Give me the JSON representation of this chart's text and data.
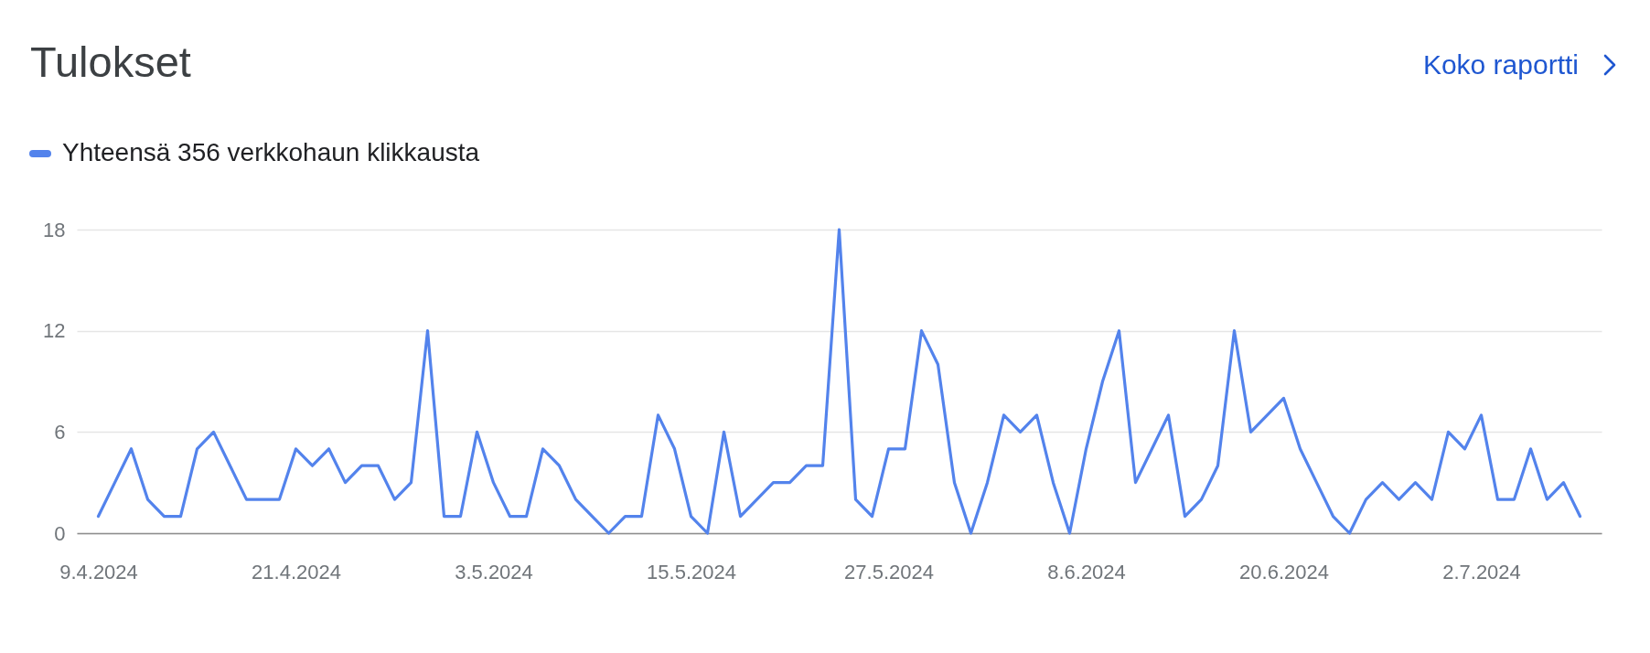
{
  "chart_data": {
    "type": "line",
    "title": "Tulokset",
    "annotations": [
      "Koko raportti"
    ],
    "x": [
      "2024-04-09",
      "2024-04-10",
      "2024-04-11",
      "2024-04-12",
      "2024-04-13",
      "2024-04-14",
      "2024-04-15",
      "2024-04-16",
      "2024-04-17",
      "2024-04-18",
      "2024-04-19",
      "2024-04-20",
      "2024-04-21",
      "2024-04-22",
      "2024-04-23",
      "2024-04-24",
      "2024-04-25",
      "2024-04-26",
      "2024-04-27",
      "2024-04-28",
      "2024-04-29",
      "2024-04-30",
      "2024-05-01",
      "2024-05-02",
      "2024-05-03",
      "2024-05-04",
      "2024-05-05",
      "2024-05-06",
      "2024-05-07",
      "2024-05-08",
      "2024-05-09",
      "2024-05-10",
      "2024-05-11",
      "2024-05-12",
      "2024-05-13",
      "2024-05-14",
      "2024-05-15",
      "2024-05-16",
      "2024-05-17",
      "2024-05-18",
      "2024-05-19",
      "2024-05-20",
      "2024-05-21",
      "2024-05-22",
      "2024-05-23",
      "2024-05-24",
      "2024-05-25",
      "2024-05-26",
      "2024-05-27",
      "2024-05-28",
      "2024-05-29",
      "2024-05-30",
      "2024-05-31",
      "2024-06-01",
      "2024-06-02",
      "2024-06-03",
      "2024-06-04",
      "2024-06-05",
      "2024-06-06",
      "2024-06-07",
      "2024-06-08",
      "2024-06-09",
      "2024-06-10",
      "2024-06-11",
      "2024-06-12",
      "2024-06-13",
      "2024-06-14",
      "2024-06-15",
      "2024-06-16",
      "2024-06-17",
      "2024-06-18",
      "2024-06-19",
      "2024-06-20",
      "2024-06-21",
      "2024-06-22",
      "2024-06-23",
      "2024-06-24",
      "2024-06-25",
      "2024-06-26",
      "2024-06-27",
      "2024-06-28",
      "2024-06-29",
      "2024-06-30",
      "2024-07-01",
      "2024-07-02",
      "2024-07-03",
      "2024-07-04",
      "2024-07-05",
      "2024-07-06",
      "2024-07-07",
      "2024-07-08"
    ],
    "series": [
      {
        "name": "Yhteensä 356 verkkohaun klikkausta",
        "color": "#5383ec",
        "values": [
          1,
          3,
          5,
          2,
          1,
          1,
          5,
          6,
          4,
          2,
          2,
          2,
          5,
          4,
          5,
          3,
          4,
          4,
          2,
          3,
          12,
          1,
          1,
          6,
          3,
          1,
          1,
          5,
          4,
          2,
          1,
          0,
          1,
          1,
          7,
          5,
          1,
          0,
          6,
          1,
          2,
          3,
          3,
          4,
          4,
          18,
          2,
          1,
          5,
          5,
          12,
          10,
          3,
          0,
          3,
          7,
          6,
          7,
          3,
          0,
          5,
          9,
          12,
          3,
          5,
          7,
          1,
          2,
          4,
          12,
          6,
          7,
          8,
          5,
          3,
          1,
          0,
          2,
          3,
          2,
          3,
          2,
          6,
          5,
          7,
          2,
          2,
          5,
          2,
          3,
          1
        ]
      }
    ],
    "xlim": [
      "2024-04-07T16:40",
      "2024-07-09T07:20"
    ],
    "xticks": [
      {
        "value": "2024-04-09",
        "label": "9.4.2024"
      },
      {
        "value": "2024-04-21",
        "label": "21.4.2024"
      },
      {
        "value": "2024-05-03",
        "label": "3.5.2024"
      },
      {
        "value": "2024-05-15",
        "label": "15.5.2024"
      },
      {
        "value": "2024-05-27",
        "label": "27.5.2024"
      },
      {
        "value": "2024-06-08",
        "label": "8.6.2024"
      },
      {
        "value": "2024-06-20",
        "label": "20.6.2024"
      },
      {
        "value": "2024-07-02",
        "label": "2.7.2024"
      }
    ],
    "ylim": [
      0,
      18
    ],
    "yticks": [
      0,
      6,
      12,
      18
    ],
    "grid": "y",
    "legend": "top left"
  }
}
